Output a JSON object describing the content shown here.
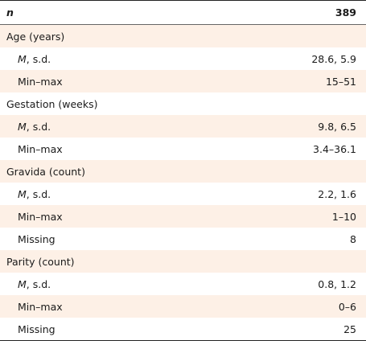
{
  "header": {
    "label": "n",
    "value": "389"
  },
  "rows": [
    {
      "type": "section",
      "label": "Age (years)",
      "value": ""
    },
    {
      "type": "sub",
      "label_italic": "M",
      "label": ", s.d.",
      "value": "28.6, 5.9"
    },
    {
      "type": "sub",
      "label": "Min–max",
      "value": "15–51"
    },
    {
      "type": "section",
      "label": "Gestation (weeks)",
      "value": ""
    },
    {
      "type": "sub",
      "label_italic": "M",
      "label": ", s.d.",
      "value": "9.8, 6.5"
    },
    {
      "type": "sub",
      "label": "Min–max",
      "value": "3.4–36.1"
    },
    {
      "type": "section",
      "label": "Gravida (count)",
      "value": ""
    },
    {
      "type": "sub",
      "label_italic": "M",
      "label": ", s.d.",
      "value": "2.2, 1.6"
    },
    {
      "type": "sub",
      "label": "Min–max",
      "value": "1–10"
    },
    {
      "type": "sub",
      "label": "Missing",
      "value": "8"
    },
    {
      "type": "section",
      "label": "Parity (count)",
      "value": ""
    },
    {
      "type": "sub",
      "label_italic": "M",
      "label": ", s.d.",
      "value": "0.8, 1.2"
    },
    {
      "type": "sub",
      "label": "Min–max",
      "value": "0–6"
    },
    {
      "type": "sub",
      "label": "Missing",
      "value": "25"
    }
  ]
}
